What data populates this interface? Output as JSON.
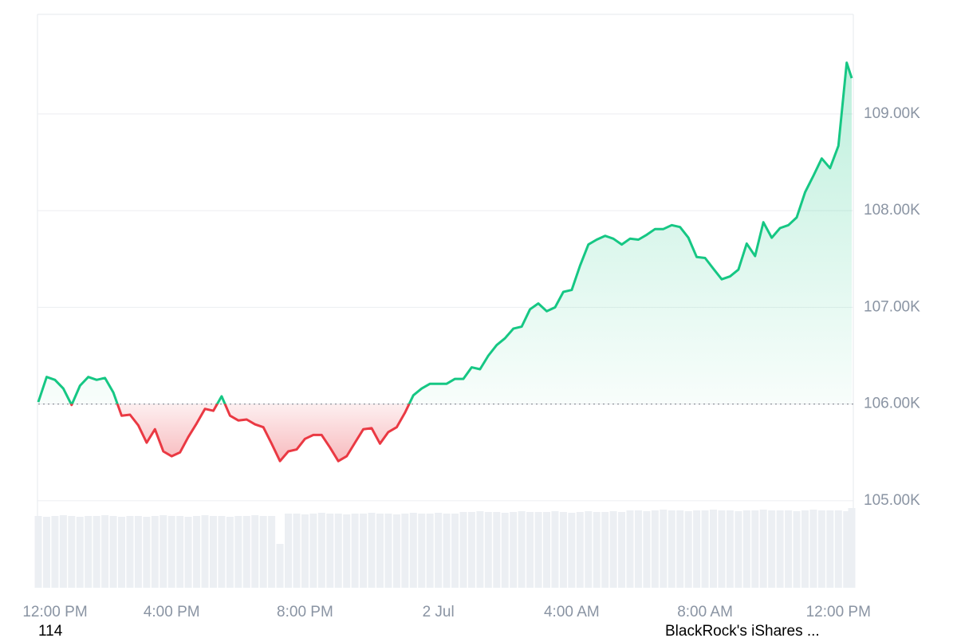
{
  "chart_data": {
    "type": "price-line",
    "x": [
      0,
      0.25,
      0.5,
      0.75,
      1,
      1.25,
      1.5,
      1.75,
      2,
      2.25,
      2.5,
      2.75,
      3,
      3.25,
      3.5,
      3.75,
      4,
      4.25,
      4.5,
      4.75,
      5,
      5.25,
      5.5,
      5.75,
      6,
      6.25,
      6.5,
      6.75,
      7,
      7.25,
      7.5,
      7.75,
      8,
      8.25,
      8.5,
      8.75,
      9,
      9.25,
      9.5,
      9.75,
      10,
      10.25,
      10.5,
      10.75,
      11,
      11.25,
      11.5,
      11.75,
      12,
      12.25,
      12.5,
      12.75,
      13,
      13.25,
      13.5,
      13.75,
      14,
      14.25,
      14.5,
      14.75,
      15,
      15.25,
      15.5,
      15.75,
      16,
      16.25,
      16.5,
      16.75,
      17,
      17.25,
      17.5,
      17.75,
      18,
      18.25,
      18.5,
      18.75,
      19,
      19.25,
      19.5,
      19.75,
      20,
      20.25,
      20.5,
      20.75,
      21,
      21.25,
      21.5,
      21.75,
      22,
      22.25,
      22.5,
      22.75,
      23,
      23.25,
      23.5,
      23.75,
      24,
      24.25,
      24.4
    ],
    "values": [
      106020,
      106280,
      106250,
      106160,
      105990,
      106190,
      106280,
      106250,
      106270,
      106120,
      105880,
      105890,
      105780,
      105600,
      105740,
      105510,
      105460,
      105500,
      105660,
      105800,
      105950,
      105930,
      106080,
      105880,
      105830,
      105840,
      105790,
      105760,
      105590,
      105410,
      105510,
      105530,
      105640,
      105680,
      105680,
      105550,
      105410,
      105460,
      105600,
      105740,
      105750,
      105590,
      105710,
      105760,
      105910,
      106090,
      106160,
      106210,
      106210,
      106210,
      106260,
      106260,
      106380,
      106360,
      106500,
      106610,
      106680,
      106780,
      106800,
      106980,
      107040,
      106960,
      107000,
      107160,
      107180,
      107430,
      107650,
      107700,
      107740,
      107710,
      107650,
      107710,
      107700,
      107750,
      107810,
      107810,
      107850,
      107830,
      107720,
      107520,
      107510,
      107400,
      107290,
      107320,
      107390,
      107660,
      107530,
      107880,
      107720,
      107820,
      107850,
      107930,
      108190,
      108360,
      108540,
      108440,
      108670,
      109530,
      109370
    ],
    "baseline": 106000,
    "up_color": "#16c784",
    "down_color": "#ea3943",
    "volume": {
      "color": "#eceff3",
      "values": [
        90,
        89,
        90,
        91,
        90,
        89,
        90,
        90,
        91,
        90,
        89,
        90,
        90,
        89,
        90,
        91,
        90,
        90,
        89,
        90,
        91,
        90,
        90,
        89,
        90,
        90,
        91,
        90,
        90,
        55,
        93,
        93,
        92,
        93,
        94,
        93,
        93,
        92,
        93,
        93,
        94,
        93,
        93,
        92,
        93,
        94,
        93,
        93,
        94,
        93,
        93,
        95,
        95,
        96,
        95,
        95,
        94,
        95,
        96,
        95,
        95,
        95,
        96,
        95,
        94,
        95,
        96,
        95,
        95,
        96,
        95,
        97,
        97,
        96,
        97,
        98,
        97,
        97,
        96,
        97,
        97,
        98,
        97,
        97,
        96,
        97,
        97,
        98,
        97,
        97,
        97,
        96,
        97,
        98,
        97,
        97,
        97,
        96,
        100
      ]
    },
    "xlim": [
      0,
      24.4
    ],
    "xticks": [
      {
        "value": 0,
        "label": "12:00 PM"
      },
      {
        "value": 4,
        "label": "4:00 PM"
      },
      {
        "value": 8,
        "label": "8:00 PM"
      },
      {
        "value": 12,
        "label": "2 Jul"
      },
      {
        "value": 16,
        "label": "4:00 AM"
      },
      {
        "value": 20,
        "label": "8:00 AM"
      },
      {
        "value": 24,
        "label": "12:00 PM"
      }
    ],
    "ylim": [
      104100,
      110030
    ],
    "yticks": [
      {
        "value": 105000,
        "label": "105.00K"
      },
      {
        "value": 106000,
        "label": "106.00K"
      },
      {
        "value": 107000,
        "label": "107.00K"
      },
      {
        "value": 108000,
        "label": "108.00K"
      },
      {
        "value": 109000,
        "label": "109.00K"
      }
    ],
    "grid": true,
    "footer_left": "114",
    "footer_right": "BlackRock's iShares ..."
  }
}
